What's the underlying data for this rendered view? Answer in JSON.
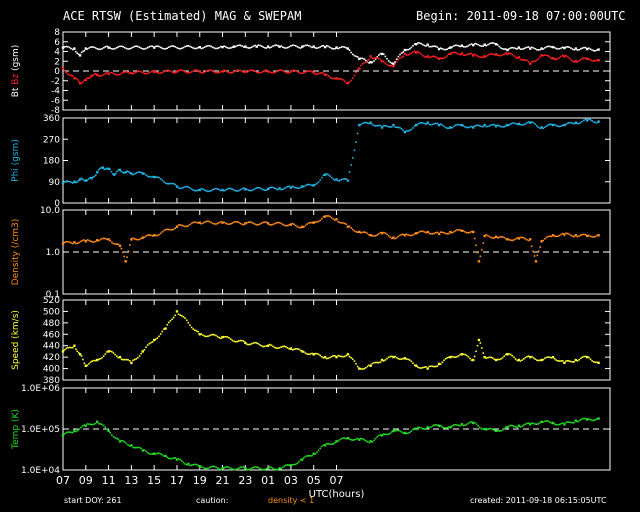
{
  "header": {
    "title": "ACE RTSW (Estimated) MAG & SWEPAM",
    "begin": "Begin: 2011-09-18 07:00:00UTC"
  },
  "footer": {
    "start_doy": "start DOY: 261",
    "caution": "caution:",
    "density_note": "density < 1",
    "created": "created: 2011-09-18 06:15:05UTC"
  },
  "colors": {
    "bt": "#ffffff",
    "bz": "#ff2020",
    "phi": "#22b4e6",
    "density": "#ff8c1a",
    "speed": "#ffff33",
    "temp": "#22dd22",
    "caution": "#ff8c1a",
    "axis": "#ffffff",
    "dash": "#ffffff"
  },
  "chart_data": [
    {
      "type": "scatter",
      "panel": "mag",
      "ylabel_parts": [
        "Bt",
        "Bz",
        "(gsm)"
      ],
      "ylim": [
        -8,
        8
      ],
      "ticks": [
        "8",
        "6",
        "4",
        "2",
        "0",
        "-2",
        "-4",
        "-6",
        "-8"
      ],
      "tick_values": [
        8,
        6,
        4,
        2,
        0,
        -2,
        -4,
        -6,
        -8
      ],
      "reference_line": 0,
      "series": [
        {
          "name": "Bt",
          "x": [
            0,
            1,
            1.5,
            2,
            4,
            8,
            12,
            14,
            15,
            16,
            17,
            18,
            19,
            21,
            22,
            23,
            24,
            25,
            26,
            27,
            28,
            29,
            30,
            31,
            32,
            33,
            34,
            35,
            36,
            37,
            38,
            39,
            40,
            41,
            42,
            43,
            44,
            45,
            46,
            47
          ],
          "y": [
            4.8,
            4.6,
            3.2,
            4.6,
            4.8,
            4.8,
            4.9,
            4.9,
            5.0,
            5.0,
            5.0,
            5.0,
            5.0,
            5.0,
            5.0,
            4.9,
            4.8,
            4.6,
            2.5,
            1.8,
            3.5,
            1.5,
            4.3,
            5.5,
            5.4,
            4.5,
            4.8,
            5.2,
            5.3,
            5.4,
            5.5,
            4.3,
            4.8,
            4.6,
            4.6,
            4.9,
            4.7,
            4.6,
            4.5,
            4.4
          ]
        },
        {
          "name": "Bz",
          "x": [
            0,
            1,
            1.5,
            2,
            2.5,
            3,
            4,
            6,
            8,
            10,
            12,
            14,
            16,
            18,
            20,
            22,
            23,
            24,
            25,
            26,
            27,
            28,
            29,
            30,
            31,
            32,
            33,
            34,
            35,
            36,
            37,
            38,
            39,
            40,
            41,
            42,
            43,
            44,
            45,
            46,
            47
          ],
          "y": [
            0.5,
            -1.5,
            -2.5,
            -1.8,
            -1.0,
            -0.8,
            -0.6,
            -0.4,
            -0.2,
            -0.1,
            -0.1,
            -0.1,
            -0.1,
            -0.1,
            -0.1,
            -0.3,
            -0.8,
            -1.5,
            -2.5,
            0.5,
            3.0,
            2.0,
            1.0,
            3.5,
            3.8,
            3.0,
            2.5,
            3.5,
            3.6,
            3.2,
            3.0,
            3.4,
            3.5,
            2.8,
            1.5,
            3.2,
            2.6,
            3.0,
            2.0,
            2.5,
            2.2
          ]
        }
      ]
    },
    {
      "type": "scatter",
      "panel": "phi",
      "ylabel": "Phi (gsm)",
      "ylim": [
        0,
        360
      ],
      "ticks": [
        "360",
        "270",
        "180",
        "90",
        "0"
      ],
      "tick_values": [
        360,
        270,
        180,
        90,
        0
      ],
      "series": [
        {
          "name": "Phi",
          "x": [
            0,
            1,
            1.5,
            2,
            2.5,
            3,
            3.5,
            4,
            4.5,
            5,
            5.5,
            6,
            7,
            8,
            10,
            12,
            14,
            16,
            18,
            19,
            20,
            21,
            22,
            23,
            24,
            25,
            26,
            27,
            28,
            29,
            30,
            31,
            32,
            33,
            34,
            35,
            36,
            37,
            38,
            39,
            40,
            41,
            42,
            43,
            44,
            45,
            46,
            47
          ],
          "y": [
            85,
            90,
            100,
            95,
            105,
            130,
            150,
            145,
            120,
            140,
            130,
            125,
            125,
            110,
            70,
            55,
            55,
            58,
            60,
            62,
            65,
            70,
            75,
            120,
            100,
            95,
            330,
            340,
            320,
            330,
            300,
            330,
            340,
            330,
            320,
            330,
            320,
            330,
            325,
            330,
            335,
            340,
            320,
            330,
            330,
            340,
            350,
            345
          ]
        }
      ]
    },
    {
      "type": "scatter",
      "panel": "density",
      "ylabel": "Density (/cm3)",
      "yscale": "log",
      "ylim": [
        0.1,
        10
      ],
      "ticks": [
        "10.0",
        "1.0",
        "0.1"
      ],
      "tick_values": [
        10,
        1,
        0.1
      ],
      "reference_line": 1,
      "series": [
        {
          "name": "Density",
          "x": [
            0,
            1,
            2,
            3,
            4,
            5,
            5.5,
            6,
            7,
            8,
            10,
            12,
            14,
            16,
            18,
            20,
            21,
            22,
            23,
            24,
            25,
            26,
            27,
            28,
            29,
            30,
            31,
            32,
            33,
            34,
            35,
            36,
            36.5,
            37,
            38,
            39,
            40,
            41,
            41.5,
            42,
            43,
            44,
            45,
            46,
            47
          ],
          "y": [
            1.6,
            1.7,
            1.8,
            1.9,
            2.0,
            1.4,
            0.6,
            2.0,
            2.2,
            2.5,
            4.0,
            5.0,
            5.0,
            4.8,
            4.8,
            4.5,
            4.0,
            5.0,
            7.0,
            6.0,
            4.0,
            3.0,
            2.5,
            2.8,
            2.2,
            2.5,
            2.8,
            3.0,
            2.7,
            3.0,
            3.2,
            3.0,
            0.6,
            2.4,
            2.3,
            2.0,
            2.1,
            2.0,
            0.6,
            1.8,
            2.5,
            2.6,
            2.5,
            2.4,
            2.5
          ]
        }
      ]
    },
    {
      "type": "scatter",
      "panel": "speed",
      "ylabel": "Speed (km/s)",
      "ylim": [
        380,
        520
      ],
      "ticks": [
        "520",
        "500",
        "480",
        "460",
        "440",
        "420",
        "400",
        "380"
      ],
      "tick_values": [
        520,
        500,
        480,
        460,
        440,
        420,
        400,
        380
      ],
      "series": [
        {
          "name": "Speed",
          "x": [
            0,
            1,
            1.5,
            2,
            3,
            4,
            5,
            6,
            7,
            8,
            9,
            10,
            12,
            14,
            16,
            18,
            20,
            21,
            22,
            23,
            24,
            25,
            26,
            27,
            28,
            29,
            30,
            31,
            32,
            33,
            34,
            35,
            36,
            36.5,
            37,
            38,
            39,
            40,
            41,
            42,
            43,
            44,
            45,
            46,
            47
          ],
          "y": [
            430,
            440,
            425,
            405,
            415,
            430,
            420,
            410,
            430,
            450,
            470,
            500,
            460,
            455,
            445,
            440,
            435,
            430,
            425,
            420,
            420,
            425,
            400,
            405,
            415,
            420,
            418,
            405,
            400,
            408,
            420,
            425,
            415,
            450,
            420,
            415,
            425,
            415,
            420,
            415,
            420,
            410,
            415,
            420,
            410
          ]
        }
      ]
    },
    {
      "type": "scatter",
      "panel": "temp",
      "ylabel": "Temp (K)",
      "yscale": "log",
      "ylim": [
        10000,
        1000000
      ],
      "ticks": [
        "1.0E+06",
        "1.0E+05",
        "1.0E+04"
      ],
      "tick_values": [
        1000000,
        100000,
        10000
      ],
      "reference_line": 100000,
      "series": [
        {
          "name": "Temp",
          "x": [
            0,
            1,
            2,
            3,
            4,
            5,
            6,
            7,
            8,
            9,
            10,
            11,
            12,
            14,
            16,
            18,
            19,
            20,
            21,
            22,
            23,
            24,
            25,
            26,
            27,
            28,
            29,
            30,
            31,
            32,
            33,
            34,
            35,
            36,
            37,
            38,
            39,
            40,
            41,
            42,
            43,
            44,
            45,
            46,
            47
          ],
          "y": [
            70000,
            90000,
            120000,
            150000,
            90000,
            50000,
            40000,
            30000,
            25000,
            22000,
            18000,
            14000,
            12000,
            11000,
            11000,
            11000,
            11000,
            13000,
            18000,
            25000,
            40000,
            50000,
            60000,
            55000,
            50000,
            70000,
            90000,
            80000,
            100000,
            110000,
            120000,
            110000,
            130000,
            140000,
            100000,
            90000,
            110000,
            120000,
            130000,
            150000,
            140000,
            130000,
            160000,
            170000,
            180000
          ]
        }
      ]
    }
  ],
  "xaxis": {
    "label": "UTC(hours)",
    "range_hours": [
      0,
      48
    ],
    "tick_labels": [
      "07",
      "09",
      "11",
      "13",
      "15",
      "17",
      "19",
      "21",
      "23",
      "01",
      "03",
      "05",
      "07"
    ],
    "tick_hours": [
      0,
      2,
      4,
      6,
      8,
      10,
      12,
      14,
      16,
      18,
      20,
      22,
      24
    ]
  }
}
